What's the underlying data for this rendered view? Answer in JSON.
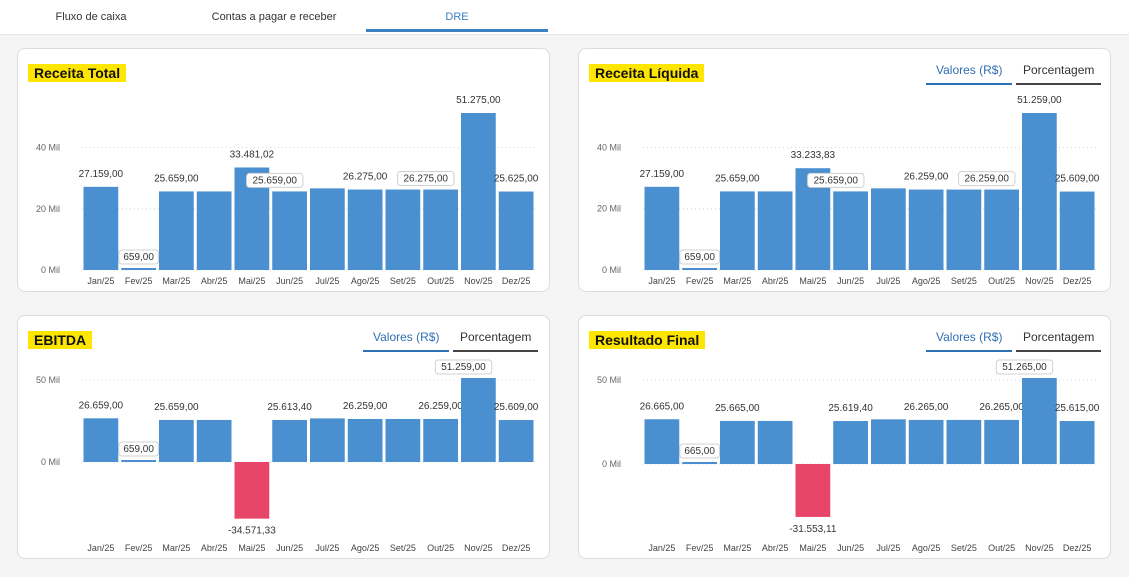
{
  "tabs": [
    {
      "label": "Fluxo de caixa",
      "active": false
    },
    {
      "label": "Contas a pagar e receber",
      "active": false
    },
    {
      "label": "DRE",
      "active": true
    }
  ],
  "toggle": {
    "values": "Valores (R$)",
    "percent": "Porcentagem"
  },
  "colors": {
    "bar": "#4a8fd0",
    "negative": "#e8456a",
    "title_bg": "#ffe600",
    "accent": "#3b82c4"
  },
  "chart_data": [
    {
      "type": "bar",
      "title": "Receita Total",
      "categories": [
        "Jan/25",
        "Fev/25",
        "Mar/25",
        "Abr/25",
        "Mai/25",
        "Jun/25",
        "Jul/25",
        "Ago/25",
        "Set/25",
        "Out/25",
        "Nov/25",
        "Dez/25"
      ],
      "values": [
        27159,
        659,
        25659,
        25659,
        33481.02,
        25659,
        26659,
        26275,
        26275,
        26275,
        51275,
        25625
      ],
      "labels": [
        "27.159,00",
        "659,00",
        "25.659,00",
        "",
        "33.481,02",
        "25.659,00",
        "",
        "26.275,00",
        "",
        "26.275,00",
        "51.275,00",
        "25.625,00"
      ],
      "yticks": [
        {
          "v": 0,
          "t": "0 Mil"
        },
        {
          "v": 20000,
          "t": "20 Mil"
        },
        {
          "v": 40000,
          "t": "40 Mil"
        }
      ],
      "ylim": [
        0,
        51275
      ]
    },
    {
      "type": "bar",
      "title": "Receita Líquida",
      "categories": [
        "Jan/25",
        "Fev/25",
        "Mar/25",
        "Abr/25",
        "Mai/25",
        "Jun/25",
        "Jul/25",
        "Ago/25",
        "Set/25",
        "Out/25",
        "Nov/25",
        "Dez/25"
      ],
      "values": [
        27159,
        659,
        25659,
        25659,
        33233.83,
        25659,
        26659,
        26259,
        26259,
        26259,
        51259,
        25609
      ],
      "labels": [
        "27.159,00",
        "659,00",
        "25.659,00",
        "",
        "33.233,83",
        "25.659,00",
        "",
        "26.259,00",
        "",
        "26.259,00",
        "51.259,00",
        "25.609,00"
      ],
      "yticks": [
        {
          "v": 0,
          "t": "0 Mil"
        },
        {
          "v": 20000,
          "t": "20 Mil"
        },
        {
          "v": 40000,
          "t": "40 Mil"
        }
      ],
      "ylim": [
        0,
        51259
      ]
    },
    {
      "type": "bar",
      "title": "EBITDA",
      "categories": [
        "Jan/25",
        "Fev/25",
        "Mar/25",
        "Abr/25",
        "Mai/25",
        "Jun/25",
        "Jul/25",
        "Ago/25",
        "Set/25",
        "Out/25",
        "Nov/25",
        "Dez/25"
      ],
      "values": [
        26659,
        659,
        25659,
        25659,
        -34571.33,
        25613.4,
        26613.4,
        26259,
        26259,
        26259,
        51259,
        25609
      ],
      "labels": [
        "26.659,00",
        "659,00",
        "25.659,00",
        "",
        "-34.571,33",
        "25.613,40",
        "",
        "26.259,00",
        "",
        "26.259,00",
        "51.259,00",
        "25.609,00"
      ],
      "yticks": [
        {
          "v": 0,
          "t": "0 Mil"
        },
        {
          "v": 50000,
          "t": "50 Mil"
        }
      ],
      "ylim": [
        -34571.33,
        51259
      ]
    },
    {
      "type": "bar",
      "title": "Resultado Final",
      "categories": [
        "Jan/25",
        "Fev/25",
        "Mar/25",
        "Abr/25",
        "Mai/25",
        "Jun/25",
        "Jul/25",
        "Ago/25",
        "Set/25",
        "Out/25",
        "Nov/25",
        "Dez/25"
      ],
      "values": [
        26665,
        665,
        25665,
        25665,
        -31553.11,
        25619.4,
        26619.4,
        26265,
        26265,
        26265,
        51265,
        25615
      ],
      "labels": [
        "26.665,00",
        "665,00",
        "25.665,00",
        "",
        "-31.553,11",
        "25.619,40",
        "",
        "26.265,00",
        "",
        "26.265,00",
        "51.265,00",
        "25.615,00"
      ],
      "yticks": [
        {
          "v": 0,
          "t": "0 Mil"
        },
        {
          "v": 50000,
          "t": "50 Mil"
        }
      ],
      "ylim": [
        -31553.11,
        51265
      ]
    }
  ]
}
